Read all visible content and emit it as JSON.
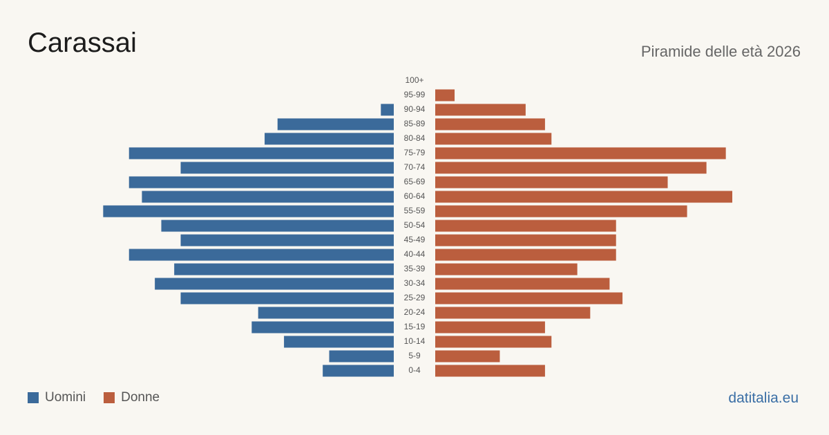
{
  "header": {
    "title": "Carassai",
    "subtitle": "Piramide delle età 2026"
  },
  "legend": {
    "male_label": "Uomini",
    "female_label": "Donne"
  },
  "footer": {
    "brand": "datitalia.eu"
  },
  "colors": {
    "male": "#3b6a9a",
    "female": "#bb5e3e",
    "background": "#f9f7f2"
  },
  "chart_data": {
    "type": "bar",
    "orientation": "horizontal",
    "layout": "population-pyramid",
    "categories": [
      "100+",
      "95-99",
      "90-94",
      "85-89",
      "80-84",
      "75-79",
      "70-74",
      "65-69",
      "60-64",
      "55-59",
      "50-54",
      "45-49",
      "40-44",
      "35-39",
      "30-34",
      "25-29",
      "20-24",
      "15-19",
      "10-14",
      "5-9",
      "0-4"
    ],
    "series": [
      {
        "name": "Uomini",
        "side": "left",
        "values": [
          0,
          0,
          2,
          18,
          20,
          41,
          33,
          41,
          39,
          45,
          36,
          33,
          41,
          34,
          37,
          33,
          21,
          22,
          17,
          10,
          11
        ]
      },
      {
        "name": "Donne",
        "side": "right",
        "values": [
          0,
          3,
          14,
          17,
          18,
          45,
          42,
          36,
          46,
          39,
          28,
          28,
          28,
          22,
          27,
          29,
          24,
          17,
          18,
          10,
          17
        ]
      }
    ],
    "xlim": [
      0,
      46
    ],
    "grid": false,
    "legend_position": "bottom-left"
  }
}
